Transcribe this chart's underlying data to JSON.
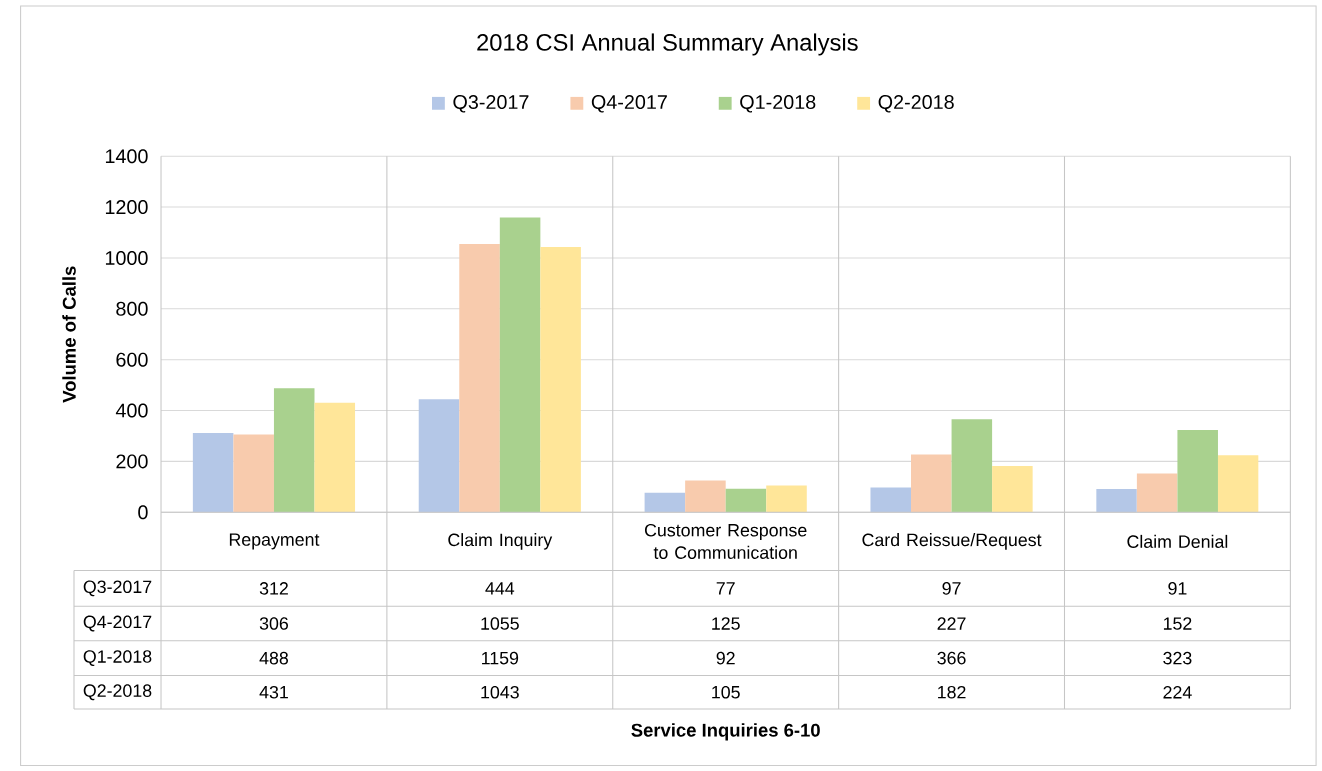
{
  "chart_data": {
    "type": "bar",
    "title": "2018 CSI Annual Summary Analysis",
    "annotations": [
      "Service Inquiries 6-10"
    ],
    "ylabel": "Volume of Calls",
    "categories": [
      "Repayment",
      "Claim Inquiry",
      "Customer Response to Communication",
      "Card Reissue/Request",
      "Claim Denial"
    ],
    "series": [
      {
        "name": "Q3-2017",
        "color": "#b4c7e7",
        "values": [
          312,
          444,
          77,
          97,
          91
        ]
      },
      {
        "name": "Q4-2017",
        "color": "#f8cbad",
        "values": [
          306,
          1055,
          125,
          227,
          152
        ]
      },
      {
        "name": "Q1-2018",
        "color": "#a9d18e",
        "values": [
          488,
          1159,
          92,
          366,
          323
        ]
      },
      {
        "name": "Q2-2018",
        "color": "#ffe699",
        "values": [
          431,
          1043,
          105,
          182,
          224
        ]
      }
    ],
    "ylim": [
      0,
      1400
    ],
    "yticks": [
      0,
      200,
      400,
      600,
      800,
      1000,
      1200,
      1400
    ],
    "grid": "y",
    "legend": "top",
    "data_labels": true
  }
}
